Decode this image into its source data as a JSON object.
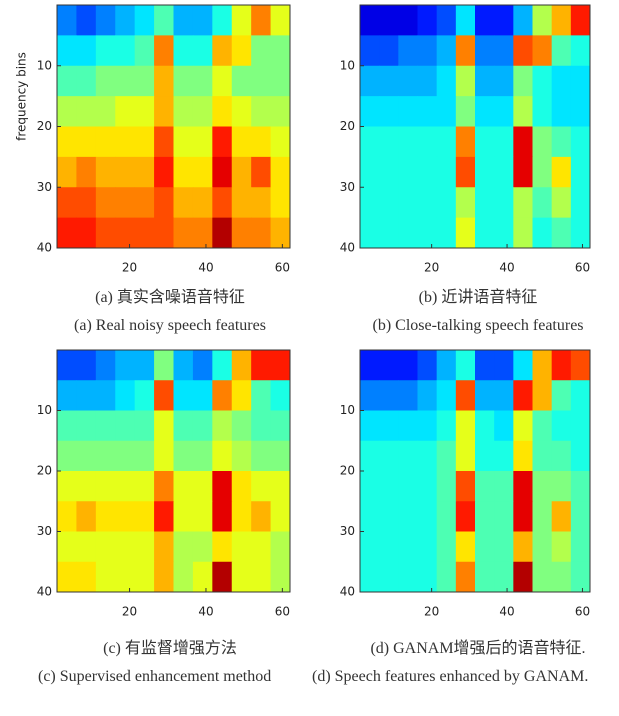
{
  "chart_data": [
    {
      "type": "heatmap",
      "ylabel": "frequency bins",
      "caption_zh": "(a) 真实含噪语音特征",
      "caption_en": "(a) Real noisy speech features",
      "colormap": "jet",
      "y_reversed": true,
      "xlim": [
        1,
        62
      ],
      "ylim": [
        0,
        40
      ],
      "xticks": [
        20,
        40,
        60
      ],
      "yticks": [
        10,
        20,
        30,
        40
      ],
      "z": [
        [
          0.25,
          0.2,
          0.25,
          0.3,
          0.35,
          0.45,
          0.3,
          0.3,
          0.4,
          0.6,
          0.75,
          0.6
        ],
        [
          0.35,
          0.35,
          0.4,
          0.4,
          0.45,
          0.75,
          0.4,
          0.4,
          0.7,
          0.65,
          0.5,
          0.5
        ],
        [
          0.45,
          0.45,
          0.5,
          0.5,
          0.5,
          0.7,
          0.5,
          0.5,
          0.6,
          0.5,
          0.5,
          0.5
        ],
        [
          0.55,
          0.55,
          0.55,
          0.6,
          0.6,
          0.7,
          0.55,
          0.55,
          0.65,
          0.6,
          0.55,
          0.55
        ],
        [
          0.65,
          0.65,
          0.65,
          0.65,
          0.65,
          0.8,
          0.6,
          0.6,
          0.85,
          0.65,
          0.65,
          0.6
        ],
        [
          0.7,
          0.75,
          0.7,
          0.7,
          0.7,
          0.85,
          0.65,
          0.65,
          0.9,
          0.7,
          0.8,
          0.65
        ],
        [
          0.8,
          0.8,
          0.75,
          0.75,
          0.75,
          0.8,
          0.7,
          0.7,
          0.8,
          0.7,
          0.7,
          0.65
        ],
        [
          0.85,
          0.85,
          0.8,
          0.8,
          0.8,
          0.8,
          0.75,
          0.75,
          0.95,
          0.75,
          0.75,
          0.7
        ]
      ]
    },
    {
      "type": "heatmap",
      "caption_zh": "(b) 近讲语音特征",
      "caption_en": "(b) Close-talking speech features",
      "colormap": "jet",
      "y_reversed": true,
      "xlim": [
        1,
        62
      ],
      "ylim": [
        0,
        40
      ],
      "xticks": [
        20,
        40,
        60
      ],
      "yticks": [
        10,
        20,
        30,
        40
      ],
      "z": [
        [
          0.1,
          0.1,
          0.1,
          0.15,
          0.2,
          0.35,
          0.15,
          0.15,
          0.3,
          0.55,
          0.7,
          0.85
        ],
        [
          0.2,
          0.2,
          0.25,
          0.25,
          0.3,
          0.75,
          0.25,
          0.25,
          0.8,
          0.75,
          0.45,
          0.4
        ],
        [
          0.3,
          0.3,
          0.3,
          0.3,
          0.35,
          0.55,
          0.3,
          0.3,
          0.5,
          0.4,
          0.35,
          0.35
        ],
        [
          0.35,
          0.35,
          0.35,
          0.35,
          0.35,
          0.5,
          0.35,
          0.35,
          0.55,
          0.4,
          0.35,
          0.35
        ],
        [
          0.4,
          0.4,
          0.4,
          0.4,
          0.4,
          0.75,
          0.4,
          0.4,
          0.9,
          0.5,
          0.45,
          0.4
        ],
        [
          0.4,
          0.4,
          0.4,
          0.4,
          0.4,
          0.8,
          0.4,
          0.4,
          0.9,
          0.5,
          0.65,
          0.4
        ],
        [
          0.4,
          0.4,
          0.4,
          0.4,
          0.4,
          0.55,
          0.4,
          0.4,
          0.55,
          0.45,
          0.55,
          0.4
        ],
        [
          0.4,
          0.4,
          0.4,
          0.4,
          0.4,
          0.6,
          0.4,
          0.4,
          0.55,
          0.4,
          0.45,
          0.4
        ]
      ]
    },
    {
      "type": "heatmap",
      "caption_zh": "(c) 有监督增强方法",
      "caption_en": "(c) Supervised enhancement method",
      "colormap": "jet",
      "y_reversed": true,
      "xlim": [
        1,
        62
      ],
      "ylim": [
        0,
        40
      ],
      "xticks": [
        20,
        40,
        60
      ],
      "yticks": [
        10,
        20,
        30,
        40
      ],
      "z": [
        [
          0.2,
          0.2,
          0.25,
          0.3,
          0.3,
          0.5,
          0.3,
          0.25,
          0.4,
          0.7,
          0.85,
          0.85
        ],
        [
          0.3,
          0.3,
          0.3,
          0.35,
          0.4,
          0.8,
          0.35,
          0.35,
          0.75,
          0.65,
          0.45,
          0.4
        ],
        [
          0.45,
          0.45,
          0.45,
          0.45,
          0.45,
          0.6,
          0.45,
          0.45,
          0.55,
          0.5,
          0.45,
          0.45
        ],
        [
          0.5,
          0.5,
          0.5,
          0.5,
          0.5,
          0.6,
          0.5,
          0.5,
          0.6,
          0.55,
          0.5,
          0.5
        ],
        [
          0.6,
          0.6,
          0.6,
          0.6,
          0.6,
          0.75,
          0.6,
          0.6,
          0.9,
          0.65,
          0.6,
          0.6
        ],
        [
          0.65,
          0.7,
          0.65,
          0.65,
          0.65,
          0.85,
          0.6,
          0.6,
          0.9,
          0.65,
          0.7,
          0.6
        ],
        [
          0.6,
          0.6,
          0.6,
          0.6,
          0.6,
          0.7,
          0.55,
          0.55,
          0.65,
          0.6,
          0.6,
          0.55
        ],
        [
          0.65,
          0.65,
          0.6,
          0.6,
          0.6,
          0.7,
          0.55,
          0.6,
          0.95,
          0.6,
          0.6,
          0.55
        ]
      ]
    },
    {
      "type": "heatmap",
      "caption_zh": "(d) GANAM增强后的语音特征.",
      "caption_en": "(d) Speech features enhanced by GANAM.",
      "colormap": "jet",
      "y_reversed": true,
      "xlim": [
        1,
        62
      ],
      "ylim": [
        0,
        40
      ],
      "xticks": [
        20,
        40,
        60
      ],
      "yticks": [
        10,
        20,
        30,
        40
      ],
      "z": [
        [
          0.15,
          0.15,
          0.15,
          0.2,
          0.3,
          0.4,
          0.2,
          0.2,
          0.35,
          0.7,
          0.85,
          0.8
        ],
        [
          0.25,
          0.25,
          0.25,
          0.3,
          0.35,
          0.8,
          0.3,
          0.3,
          0.85,
          0.7,
          0.45,
          0.4
        ],
        [
          0.35,
          0.35,
          0.35,
          0.35,
          0.4,
          0.6,
          0.4,
          0.35,
          0.6,
          0.45,
          0.4,
          0.4
        ],
        [
          0.4,
          0.4,
          0.4,
          0.4,
          0.45,
          0.6,
          0.4,
          0.4,
          0.65,
          0.45,
          0.45,
          0.4
        ],
        [
          0.4,
          0.4,
          0.4,
          0.4,
          0.45,
          0.8,
          0.45,
          0.45,
          0.9,
          0.5,
          0.5,
          0.45
        ],
        [
          0.4,
          0.4,
          0.4,
          0.4,
          0.45,
          0.85,
          0.45,
          0.45,
          0.9,
          0.5,
          0.7,
          0.45
        ],
        [
          0.4,
          0.4,
          0.4,
          0.4,
          0.45,
          0.65,
          0.45,
          0.45,
          0.7,
          0.5,
          0.55,
          0.45
        ],
        [
          0.4,
          0.4,
          0.4,
          0.4,
          0.45,
          0.75,
          0.45,
          0.45,
          0.95,
          0.5,
          0.5,
          0.45
        ]
      ]
    }
  ]
}
